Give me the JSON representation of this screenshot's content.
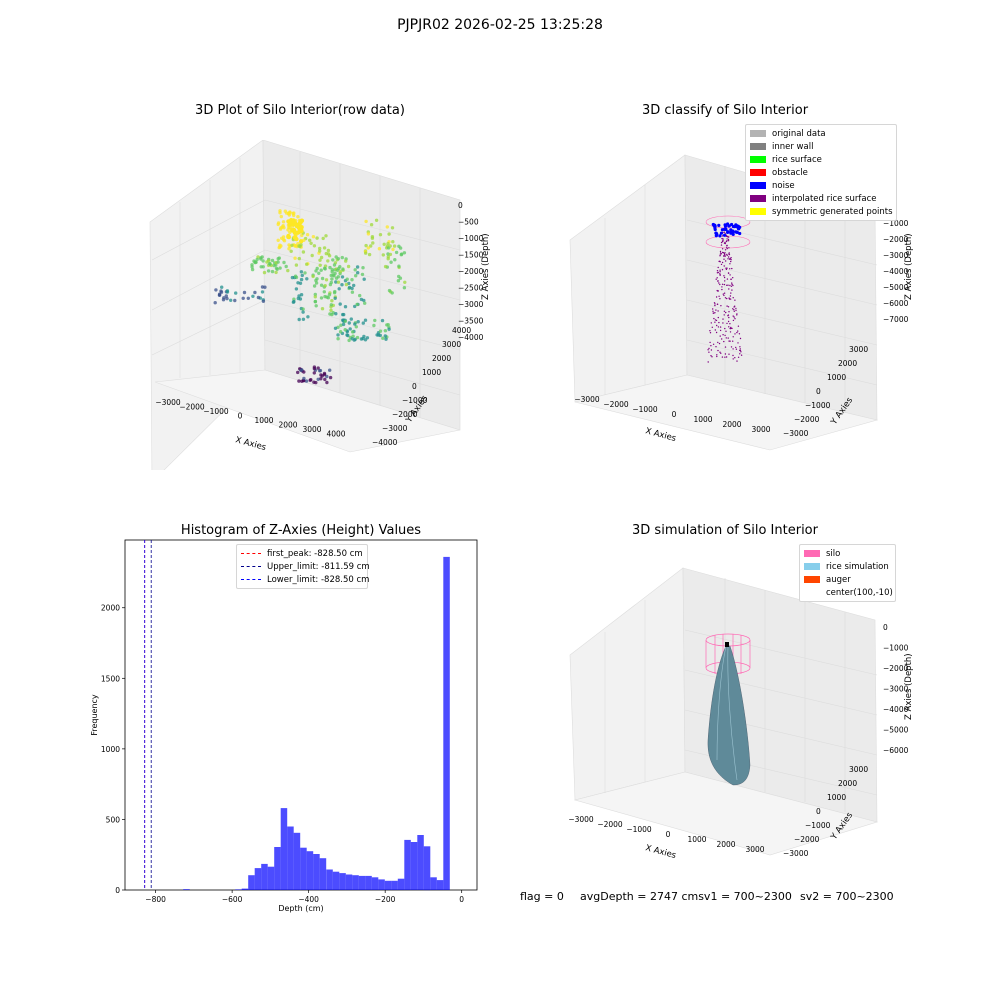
{
  "figure": {
    "title": "PJPJR02 2026-02-25 13:25:28"
  },
  "chart_data": [
    {
      "type": "scatter",
      "title": "3D Plot of Silo Interior(row data)",
      "xlabel": "X Axies",
      "ylabel": "Y Axies",
      "zlabel": "Z Axies (Depth)",
      "xticks": [
        "−3000",
        "−2000",
        "−1000",
        "0",
        "1000",
        "2000",
        "3000",
        "4000"
      ],
      "yticks": [
        "−4000",
        "−3000",
        "−2000",
        "−1000",
        "0",
        "1000",
        "2000",
        "3000",
        "4000"
      ],
      "zticks": [
        "0",
        "−500",
        "−1000",
        "−1500",
        "−2000",
        "−2500",
        "−3000",
        "−3500",
        "−4000"
      ],
      "zlim": [
        -4000,
        0
      ],
      "colormap": "viridis"
    },
    {
      "type": "scatter",
      "title": "3D classify of Silo Interior",
      "xlabel": "X Axies",
      "ylabel": "Y Axies",
      "zlabel": "Z Axies (Depth)",
      "xticks": [
        "−3000",
        "−2000",
        "−1000",
        "0",
        "1000",
        "2000",
        "3000"
      ],
      "yticks": [
        "−3000",
        "−2000",
        "−1000",
        "0",
        "1000",
        "2000",
        "3000"
      ],
      "zticks": [
        "0",
        "−1000",
        "−2000",
        "−3000",
        "−4000",
        "−5000",
        "−6000",
        "−7000"
      ],
      "zlim": [
        -7000,
        0
      ],
      "legend": [
        {
          "label": "original data",
          "color": "#b3b3b3"
        },
        {
          "label": "inner wall",
          "color": "#808080"
        },
        {
          "label": "rice surface",
          "color": "#00ff00"
        },
        {
          "label": "obstacle",
          "color": "#ff0000"
        },
        {
          "label": "noise",
          "color": "#0000ff"
        },
        {
          "label": "interpolated rice surface",
          "color": "#800080"
        },
        {
          "label": "symmetric generated points",
          "color": "#ffff00"
        }
      ],
      "legend_position": "top-right"
    },
    {
      "type": "bar",
      "title": "Histogram of Z-Axies (Height) Values",
      "xlabel": "Depth (cm)",
      "ylabel": "Frequency",
      "xlim": [
        -880,
        40
      ],
      "ylim": [
        0,
        2480
      ],
      "xticks": [
        -800,
        -600,
        -400,
        -200,
        0
      ],
      "xtick_labels": [
        "−800",
        "−600",
        "−400",
        "−200",
        "0"
      ],
      "yticks": [
        0,
        500,
        1000,
        1500,
        2000
      ],
      "bar_color": "#0000ff",
      "bins": [
        {
          "x0": -728,
          "x1": -711,
          "v": 6
        },
        {
          "x0": -592,
          "x1": -575,
          "v": 4
        },
        {
          "x0": -575,
          "x1": -558,
          "v": 10
        },
        {
          "x0": -558,
          "x1": -541,
          "v": 105
        },
        {
          "x0": -541,
          "x1": -524,
          "v": 155
        },
        {
          "x0": -524,
          "x1": -507,
          "v": 185
        },
        {
          "x0": -507,
          "x1": -490,
          "v": 165
        },
        {
          "x0": -490,
          "x1": -473,
          "v": 305
        },
        {
          "x0": -473,
          "x1": -456,
          "v": 580
        },
        {
          "x0": -456,
          "x1": -439,
          "v": 450
        },
        {
          "x0": -439,
          "x1": -422,
          "v": 405
        },
        {
          "x0": -422,
          "x1": -405,
          "v": 300
        },
        {
          "x0": -405,
          "x1": -388,
          "v": 275
        },
        {
          "x0": -388,
          "x1": -371,
          "v": 255
        },
        {
          "x0": -371,
          "x1": -354,
          "v": 225
        },
        {
          "x0": -354,
          "x1": -337,
          "v": 145
        },
        {
          "x0": -337,
          "x1": -320,
          "v": 130
        },
        {
          "x0": -320,
          "x1": -303,
          "v": 120
        },
        {
          "x0": -303,
          "x1": -286,
          "v": 110
        },
        {
          "x0": -286,
          "x1": -269,
          "v": 105
        },
        {
          "x0": -269,
          "x1": -252,
          "v": 100
        },
        {
          "x0": -252,
          "x1": -235,
          "v": 100
        },
        {
          "x0": -235,
          "x1": -218,
          "v": 90
        },
        {
          "x0": -218,
          "x1": -201,
          "v": 75
        },
        {
          "x0": -201,
          "x1": -184,
          "v": 65
        },
        {
          "x0": -184,
          "x1": -167,
          "v": 65
        },
        {
          "x0": -167,
          "x1": -150,
          "v": 80
        },
        {
          "x0": -150,
          "x1": -133,
          "v": 355
        },
        {
          "x0": -133,
          "x1": -116,
          "v": 340
        },
        {
          "x0": -116,
          "x1": -99,
          "v": 390
        },
        {
          "x0": -99,
          "x1": -82,
          "v": 310
        },
        {
          "x0": -82,
          "x1": -65,
          "v": 90
        },
        {
          "x0": -65,
          "x1": -48,
          "v": 70
        },
        {
          "x0": -48,
          "x1": -31,
          "v": 2360
        }
      ],
      "vlines": [
        {
          "label": "first_peak: -828.50 cm",
          "x": -828.5,
          "color": "#ff0000"
        },
        {
          "label": "Upper_limit: -811.59 cm",
          "x": -811.59,
          "color": "#00008b"
        },
        {
          "label": "Lower_limit: -828.50 cm",
          "x": -828.5,
          "color": "#0000ff"
        }
      ],
      "legend_position": "upper-center"
    },
    {
      "type": "surface",
      "title": "3D simulation of Silo Interior",
      "xlabel": "X Axies",
      "ylabel": "Y Axies",
      "zlabel": "Z Axies (Depth)",
      "xticks": [
        "−3000",
        "−2000",
        "−1000",
        "0",
        "1000",
        "2000",
        "3000"
      ],
      "yticks": [
        "−3000",
        "−2000",
        "−1000",
        "0",
        "1000",
        "2000",
        "3000"
      ],
      "zticks": [
        "0",
        "−1000",
        "−2000",
        "−3000",
        "−4000",
        "−5000",
        "−6000"
      ],
      "zlim": [
        -6000,
        0
      ],
      "legend": [
        {
          "label": "silo",
          "color": "#ff69b4"
        },
        {
          "label": "rice simulation",
          "color": "#87ceeb"
        },
        {
          "label": "auger",
          "color": "#ff4500"
        },
        {
          "label": "center(100,-10)",
          "color": ""
        }
      ],
      "legend_position": "top-right"
    }
  ],
  "footer": {
    "flag": "flag = 0",
    "avg": "avgDepth = 2747 cmsv1 = 700~2300",
    "sv2": "sv2 = 700~2300"
  }
}
